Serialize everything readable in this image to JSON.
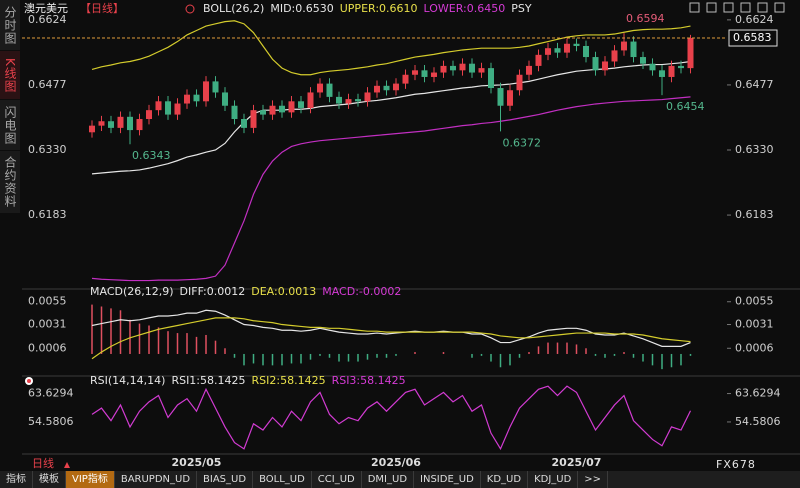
{
  "sidebar": [
    "分时图",
    "K线图",
    "闪电图",
    "合约资料"
  ],
  "chart_data": [
    {
      "type": "candlestick",
      "title": "澳元美元",
      "period": "【日线】",
      "legend": [
        {
          "text": "BOLL(26,2)",
          "color": "#e6e6e6"
        },
        {
          "text": "MID:0.6530",
          "color": "#e6e6e6"
        },
        {
          "text": "UPPER:0.6610",
          "color": "#e8e04a"
        },
        {
          "text": "LOWER:0.6450",
          "color": "#d63bd6"
        },
        {
          "text": "PSY",
          "color": "#e6e6e6"
        }
      ],
      "up_color": "#e8414b",
      "down_color": "#3fae83",
      "candles": [
        [
          0.637,
          0.6397,
          0.6358,
          0.6385
        ],
        [
          0.6385,
          0.6407,
          0.6373,
          0.6395
        ],
        [
          0.6395,
          0.6407,
          0.6368,
          0.638
        ],
        [
          0.638,
          0.6417,
          0.6368,
          0.6405
        ],
        [
          0.6405,
          0.6417,
          0.6343,
          0.6375
        ],
        [
          0.6375,
          0.6412,
          0.6363,
          0.64
        ],
        [
          0.64,
          0.6432,
          0.6388,
          0.642
        ],
        [
          0.642,
          0.6452,
          0.6408,
          0.644
        ],
        [
          0.644,
          0.6452,
          0.6398,
          0.641
        ],
        [
          0.641,
          0.6447,
          0.6398,
          0.6435
        ],
        [
          0.6435,
          0.6467,
          0.6423,
          0.6455
        ],
        [
          0.6455,
          0.6467,
          0.6428,
          0.644
        ],
        [
          0.644,
          0.6497,
          0.6428,
          0.6485
        ],
        [
          0.6485,
          0.6497,
          0.6448,
          0.646
        ],
        [
          0.646,
          0.6472,
          0.6418,
          0.643
        ],
        [
          0.643,
          0.6442,
          0.6388,
          0.64
        ],
        [
          0.64,
          0.6412,
          0.6368,
          0.638
        ],
        [
          0.638,
          0.6432,
          0.6368,
          0.642
        ],
        [
          0.642,
          0.6432,
          0.6398,
          0.641
        ],
        [
          0.641,
          0.6442,
          0.6398,
          0.643
        ],
        [
          0.643,
          0.6442,
          0.6403,
          0.6415
        ],
        [
          0.6415,
          0.6452,
          0.6403,
          0.644
        ],
        [
          0.644,
          0.6452,
          0.6413,
          0.6425
        ],
        [
          0.6425,
          0.6472,
          0.6413,
          0.646
        ],
        [
          0.646,
          0.6492,
          0.6448,
          0.648
        ],
        [
          0.648,
          0.6492,
          0.6438,
          0.645
        ],
        [
          0.645,
          0.6462,
          0.6423,
          0.6435
        ],
        [
          0.6435,
          0.6457,
          0.6423,
          0.6445
        ],
        [
          0.6445,
          0.6457,
          0.6428,
          0.644
        ],
        [
          0.644,
          0.6472,
          0.6428,
          0.646
        ],
        [
          0.646,
          0.6487,
          0.6448,
          0.6475
        ],
        [
          0.6475,
          0.6487,
          0.6453,
          0.6465
        ],
        [
          0.6465,
          0.6492,
          0.6453,
          0.648
        ],
        [
          0.648,
          0.6512,
          0.6468,
          0.65
        ],
        [
          0.65,
          0.6522,
          0.6488,
          0.651
        ],
        [
          0.651,
          0.6522,
          0.6483,
          0.6495
        ],
        [
          0.6495,
          0.6517,
          0.6483,
          0.6505
        ],
        [
          0.6505,
          0.6532,
          0.6493,
          0.652
        ],
        [
          0.652,
          0.6532,
          0.6498,
          0.651
        ],
        [
          0.651,
          0.6537,
          0.6498,
          0.6525
        ],
        [
          0.6525,
          0.6537,
          0.6493,
          0.6505
        ],
        [
          0.6505,
          0.6527,
          0.6493,
          0.6515
        ],
        [
          0.6515,
          0.6527,
          0.6458,
          0.647
        ],
        [
          0.647,
          0.6482,
          0.6372,
          0.643
        ],
        [
          0.643,
          0.6477,
          0.6418,
          0.6465
        ],
        [
          0.6465,
          0.6512,
          0.6453,
          0.65
        ],
        [
          0.65,
          0.6532,
          0.6488,
          0.652
        ],
        [
          0.652,
          0.6557,
          0.6508,
          0.6545
        ],
        [
          0.6545,
          0.6572,
          0.6533,
          0.656
        ],
        [
          0.656,
          0.6572,
          0.6538,
          0.655
        ],
        [
          0.655,
          0.6582,
          0.6538,
          0.657
        ],
        [
          0.657,
          0.6582,
          0.6553,
          0.6565
        ],
        [
          0.6565,
          0.6577,
          0.6528,
          0.654
        ],
        [
          0.654,
          0.6552,
          0.6498,
          0.651
        ],
        [
          0.651,
          0.6542,
          0.6498,
          0.653
        ],
        [
          0.653,
          0.6567,
          0.6518,
          0.6555
        ],
        [
          0.6555,
          0.6594,
          0.6543,
          0.6575
        ],
        [
          0.6575,
          0.6587,
          0.6528,
          0.654
        ],
        [
          0.654,
          0.6552,
          0.6513,
          0.6525
        ],
        [
          0.6525,
          0.6537,
          0.6498,
          0.651
        ],
        [
          0.651,
          0.6522,
          0.6454,
          0.6495
        ],
        [
          0.6495,
          0.6532,
          0.6483,
          0.652
        ],
        [
          0.652,
          0.6532,
          0.6503,
          0.6515
        ],
        [
          0.6515,
          0.659,
          0.6503,
          0.6583
        ]
      ],
      "bands": {
        "upper": {
          "color": "#d4cc2c",
          "values": [
            0.6512,
            0.6518,
            0.6522,
            0.6527,
            0.653,
            0.6535,
            0.6542,
            0.6552,
            0.6562,
            0.6575,
            0.659,
            0.66,
            0.661,
            0.6615,
            0.662,
            0.6622,
            0.6615,
            0.6595,
            0.6565,
            0.6535,
            0.6515,
            0.6505,
            0.65,
            0.65,
            0.6505,
            0.6508,
            0.651,
            0.6512,
            0.6515,
            0.6518,
            0.6522,
            0.6525,
            0.653,
            0.6535,
            0.654,
            0.6543,
            0.6546,
            0.655,
            0.6553,
            0.6556,
            0.6558,
            0.656,
            0.656,
            0.656,
            0.656,
            0.6562,
            0.6565,
            0.657,
            0.6575,
            0.658,
            0.6585,
            0.6588,
            0.659,
            0.659,
            0.659,
            0.6592,
            0.6596,
            0.66,
            0.6602,
            0.6603,
            0.6603,
            0.6604,
            0.6606,
            0.661
          ]
        },
        "mid": {
          "color": "#e6e6e6",
          "values": [
            0.6276,
            0.6278,
            0.628,
            0.6282,
            0.6283,
            0.6285,
            0.6289,
            0.6294,
            0.6299,
            0.6306,
            0.6314,
            0.6319,
            0.6325,
            0.633,
            0.6345,
            0.6371,
            0.6393,
            0.6412,
            0.642,
            0.642,
            0.642,
            0.6422,
            0.6422,
            0.6424,
            0.6428,
            0.643,
            0.6432,
            0.6434,
            0.6437,
            0.644,
            0.6442,
            0.6445,
            0.6448,
            0.6452,
            0.6456,
            0.6458,
            0.6461,
            0.6464,
            0.6467,
            0.647,
            0.6472,
            0.6475,
            0.6476,
            0.6477,
            0.6479,
            0.6482,
            0.6485,
            0.649,
            0.6495,
            0.65,
            0.6504,
            0.6508,
            0.651,
            0.6512,
            0.6513,
            0.6515,
            0.6518,
            0.652,
            0.6522,
            0.6523,
            0.6523,
            0.6525,
            0.6527,
            0.653
          ]
        },
        "lower": {
          "color": "#c22fc2",
          "values": [
            0.604,
            0.6038,
            0.6037,
            0.6036,
            0.6035,
            0.6035,
            0.6035,
            0.6036,
            0.6036,
            0.6036,
            0.6037,
            0.6038,
            0.604,
            0.6045,
            0.607,
            0.612,
            0.617,
            0.623,
            0.6275,
            0.6305,
            0.6325,
            0.6338,
            0.6344,
            0.6348,
            0.6351,
            0.6353,
            0.6355,
            0.6357,
            0.6359,
            0.6361,
            0.6363,
            0.6365,
            0.6367,
            0.6369,
            0.6371,
            0.6373,
            0.6376,
            0.6379,
            0.6382,
            0.6385,
            0.6387,
            0.639,
            0.6392,
            0.6395,
            0.6398,
            0.6402,
            0.6406,
            0.641,
            0.6415,
            0.642,
            0.6424,
            0.6428,
            0.6431,
            0.6434,
            0.6436,
            0.6438,
            0.644,
            0.6441,
            0.6442,
            0.6443,
            0.6444,
            0.6446,
            0.6448,
            0.645
          ]
        }
      },
      "last_price": 0.6583,
      "last_price_color": "#e09a3a",
      "annotations": [
        {
          "value": 0.6594,
          "color": "#e45c78"
        },
        {
          "value": 0.6454,
          "color": "#55b88e"
        },
        {
          "value": 0.6343,
          "color": "#55b88e"
        },
        {
          "value": 0.6372,
          "color": "#55b88e"
        }
      ],
      "ylim": [
        0.6025,
        0.6635
      ],
      "yticks": [
        0.6624,
        0.6477,
        {
          "value": 0.633,
          "label": "0.6330"
        },
        0.6183
      ],
      "xlabels": [
        "2025/05",
        "2025/06",
        "2025/07"
      ]
    },
    {
      "type": "macd",
      "legend": [
        {
          "text": "MACD(26,12,9)",
          "color": "#e6e6e6"
        },
        {
          "text": "DIFF:0.0012",
          "color": "#e6e6e6"
        },
        {
          "text": "DEA:0.0013",
          "color": "#e8e04a"
        },
        {
          "text": "MACD:-0.0002",
          "color": "#d63bd6"
        }
      ],
      "diff": {
        "color": "#e6e6e6",
        "values": [
          0.003,
          0.0032,
          0.0034,
          0.0036,
          0.0035,
          0.0036,
          0.0038,
          0.004,
          0.004,
          0.0041,
          0.0043,
          0.0043,
          0.0046,
          0.0045,
          0.0041,
          0.0036,
          0.0031,
          0.003,
          0.0028,
          0.0027,
          0.0025,
          0.0025,
          0.0024,
          0.0025,
          0.0027,
          0.0025,
          0.0023,
          0.0022,
          0.0021,
          0.0021,
          0.0022,
          0.0021,
          0.0022,
          0.0023,
          0.0024,
          0.0023,
          0.0023,
          0.0024,
          0.0023,
          0.0023,
          0.0021,
          0.0021,
          0.0017,
          0.0012,
          0.0012,
          0.0015,
          0.0018,
          0.0022,
          0.0025,
          0.0026,
          0.0027,
          0.0027,
          0.0025,
          0.0021,
          0.002,
          0.002,
          0.0022,
          0.0019,
          0.0016,
          0.0012,
          0.0008,
          0.0008,
          0.0008,
          0.0012
        ]
      },
      "dea": {
        "color": "#d4cc2c",
        "values": [
          -0.0005,
          0.0002,
          0.0008,
          0.0013,
          0.0017,
          0.002,
          0.0023,
          0.0026,
          0.0028,
          0.003,
          0.0032,
          0.0034,
          0.0036,
          0.0038,
          0.0038,
          0.0038,
          0.0037,
          0.0035,
          0.0034,
          0.0033,
          0.0031,
          0.003,
          0.0029,
          0.0028,
          0.0028,
          0.0027,
          0.0027,
          0.0026,
          0.0025,
          0.0024,
          0.0024,
          0.0023,
          0.0023,
          0.0023,
          0.0023,
          0.0023,
          0.0023,
          0.0023,
          0.0023,
          0.0023,
          0.0023,
          0.0022,
          0.0021,
          0.0019,
          0.0018,
          0.0017,
          0.0017,
          0.0018,
          0.0019,
          0.002,
          0.0021,
          0.0022,
          0.0022,
          0.0022,
          0.0022,
          0.0021,
          0.0021,
          0.0021,
          0.002,
          0.0018,
          0.0016,
          0.0015,
          0.0014,
          0.0013
        ]
      },
      "hist": [
        0.0052,
        0.005,
        0.0048,
        0.0046,
        0.0036,
        0.0032,
        0.003,
        0.0028,
        0.0024,
        0.0022,
        0.0022,
        0.0018,
        0.002,
        0.0014,
        0.0006,
        -0.0004,
        -0.0012,
        -0.001,
        -0.0012,
        -0.0012,
        -0.0012,
        -0.001,
        -0.001,
        -0.0006,
        -0.0002,
        -0.0004,
        -0.0008,
        -0.0008,
        -0.0008,
        -0.0006,
        -0.0004,
        -0.0004,
        -0.0002,
        0,
        0.0002,
        0,
        0,
        0.0002,
        0,
        0,
        -0.0004,
        -0.0002,
        -0.0008,
        -0.0014,
        -0.0012,
        -0.0004,
        0.0002,
        0.0008,
        0.0012,
        0.0012,
        0.0012,
        0.001,
        0.0006,
        -0.0002,
        -0.0004,
        -0.0002,
        0.0002,
        -0.0004,
        -0.0008,
        -0.0012,
        -0.0016,
        -0.0014,
        -0.0012,
        -0.0002
      ],
      "hist_up_color": "#e05060",
      "hist_down_color": "#3fae83",
      "ylim": [
        -0.0019,
        0.006
      ],
      "yticks": [
        0.0055,
        0.0031,
        0.0006
      ]
    },
    {
      "type": "rsi",
      "legend": [
        {
          "text": "RSI(14,14,14)",
          "color": "#e6e6e6"
        },
        {
          "text": "RSI1:58.1425",
          "color": "#e6e6e6"
        },
        {
          "text": "RSI2:58.1425",
          "color": "#e8e04a"
        },
        {
          "text": "RSI3:58.1425",
          "color": "#d63bd6"
        }
      ],
      "color": "#d23bd2",
      "values": [
        57,
        59,
        55,
        60,
        53,
        58,
        61,
        63,
        56,
        60,
        62,
        58,
        65,
        59,
        53,
        48,
        46,
        54,
        52,
        56,
        53,
        58,
        55,
        61,
        64,
        57,
        54,
        56,
        55,
        59,
        61,
        58,
        61,
        64,
        65,
        60,
        62,
        64,
        61,
        63,
        58,
        60,
        51,
        46,
        53,
        59,
        62,
        65,
        66,
        63,
        66,
        64,
        58,
        52,
        56,
        60,
        63,
        55,
        52,
        49,
        47,
        53,
        52,
        58.1425
      ],
      "ylim": [
        45,
        67
      ],
      "yticks": [
        63.6294,
        54.5806
      ]
    }
  ],
  "footer": {
    "period": "日线",
    "brand": "FX678"
  },
  "tabs": [
    "指标",
    "模板",
    "VIP指标",
    "BARUPDN_UD",
    "BIAS_UD",
    "BOLL_UD",
    "CCI_UD",
    "DMI_UD",
    "INSIDE_UD",
    "KD_UD",
    "KDJ_UD",
    ">>"
  ]
}
